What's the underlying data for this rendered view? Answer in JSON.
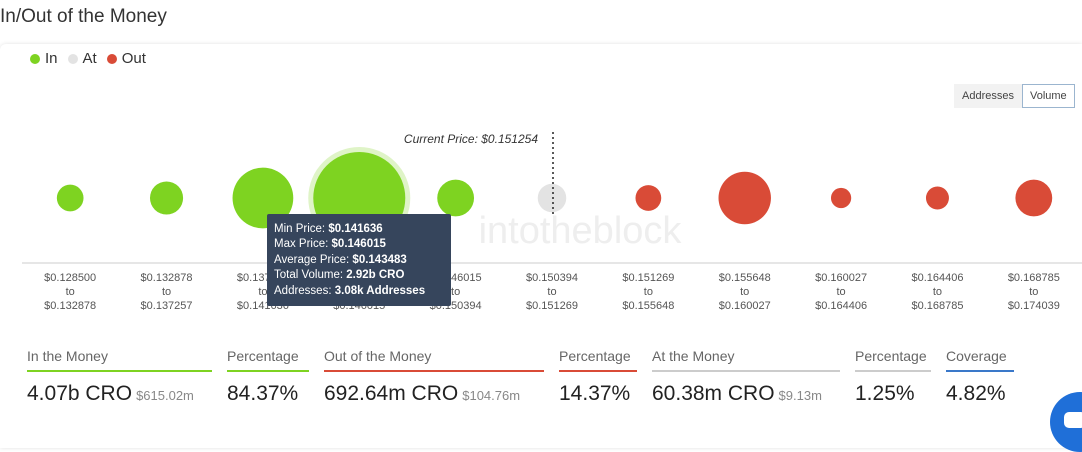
{
  "header": {
    "title": "In/Out of the Money"
  },
  "legend": [
    {
      "label": "In",
      "color": "#7ed321"
    },
    {
      "label": "At",
      "color": "#e3e3e3"
    },
    {
      "label": "Out",
      "color": "#d94b37"
    }
  ],
  "toggle": {
    "addresses": "Addresses",
    "volume": "Volume",
    "active": "Volume"
  },
  "current_price_label": "Current Price: $0.151254",
  "watermark": "intotheblock",
  "chart_data": {
    "type": "bubble",
    "series_colors": {
      "in": "#7ed321",
      "at": "#e3e3e3",
      "out": "#d94b37"
    },
    "buckets": [
      {
        "from": "$0.128500",
        "to": "$0.132878",
        "status": "in",
        "relative_size": 0.29
      },
      {
        "from": "$0.132878",
        "to": "$0.137257",
        "status": "in",
        "relative_size": 0.36
      },
      {
        "from": "$0.137257",
        "to": "$0.141636",
        "status": "in",
        "relative_size": 0.66
      },
      {
        "from": "$0.141636",
        "to": "$0.146015",
        "status": "in",
        "relative_size": 1.0,
        "highlighted": true
      },
      {
        "from": "$0.146015",
        "to": "$0.150394",
        "status": "in",
        "relative_size": 0.4
      },
      {
        "from": "$0.150394",
        "to": "$0.151269",
        "status": "at",
        "relative_size": 0.31
      },
      {
        "from": "$0.151269",
        "to": "$0.155648",
        "status": "out",
        "relative_size": 0.28
      },
      {
        "from": "$0.155648",
        "to": "$0.160027",
        "status": "out",
        "relative_size": 0.57
      },
      {
        "from": "$0.160027",
        "to": "$0.164406",
        "status": "out",
        "relative_size": 0.22
      },
      {
        "from": "$0.164406",
        "to": "$0.168785",
        "status": "out",
        "relative_size": 0.25
      },
      {
        "from": "$0.168785",
        "to": "$0.174039",
        "status": "out",
        "relative_size": 0.4
      }
    ],
    "to_word": "to",
    "current_price": "$0.151254"
  },
  "tooltip": {
    "min_label": "Min Price:",
    "min_value": "$0.141636",
    "max_label": "Max Price:",
    "max_value": "$0.146015",
    "avg_label": "Average Price:",
    "avg_value": "$0.143483",
    "vol_label": "Total Volume:",
    "vol_value": "2.92b CRO",
    "addr_label": "Addresses:",
    "addr_value": "3.08k Addresses"
  },
  "stats": {
    "in_label": "In the Money",
    "in_value": "4.07b CRO",
    "in_usd": "$615.02m",
    "in_pct_label": "Percentage",
    "in_pct": "84.37%",
    "out_label": "Out of the Money",
    "out_value": "692.64m CRO",
    "out_usd": "$104.76m",
    "out_pct_label": "Percentage",
    "out_pct": "14.37%",
    "at_label": "At the Money",
    "at_value": "60.38m CRO",
    "at_usd": "$9.13m",
    "at_pct_label": "Percentage",
    "at_pct": "1.25%",
    "cov_label": "Coverage",
    "cov_value": "4.82%"
  },
  "stat_colors": {
    "in": "#7ed321",
    "out": "#d94b37",
    "at": "#cccccc",
    "coverage": "#3a78c9"
  }
}
